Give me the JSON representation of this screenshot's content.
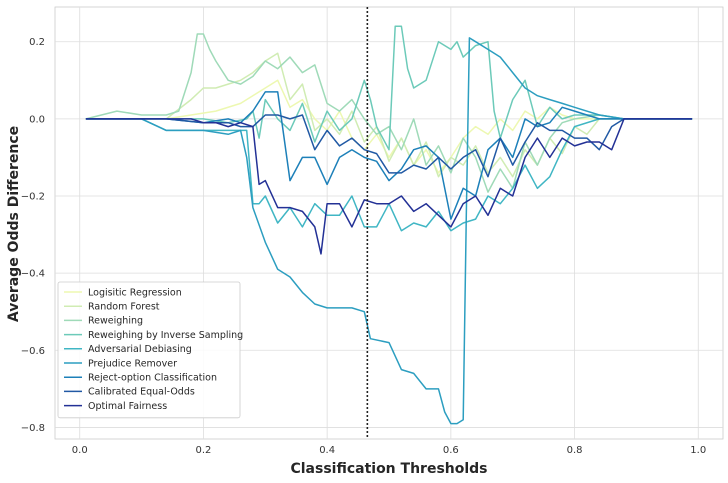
{
  "chart_data": {
    "type": "line",
    "xlabel": "Classification Thresholds",
    "ylabel": "Average Odds Difference",
    "xlim": [
      -0.04,
      1.04
    ],
    "ylim": [
      -0.83,
      0.29
    ],
    "xticks": [
      0.0,
      0.2,
      0.4,
      0.6,
      0.8,
      1.0
    ],
    "xtick_labels": [
      "0.0",
      "0.2",
      "0.4",
      "0.6",
      "0.8",
      "1.0"
    ],
    "yticks": [
      -0.8,
      -0.6,
      -0.4,
      -0.2,
      0.0,
      0.2
    ],
    "ytick_labels": [
      "−0.8",
      "−0.6",
      "−0.4",
      "−0.2",
      "0.0",
      "0.2"
    ],
    "grid": true,
    "legend_position": "lower-left",
    "vline": {
      "x": 0.465,
      "style": "dotted",
      "color": "#222222"
    },
    "series": [
      {
        "name": "Logisitic Regression",
        "color": "#edf8b1",
        "x": [
          0.01,
          0.1,
          0.14,
          0.18,
          0.22,
          0.26,
          0.3,
          0.32,
          0.34,
          0.36,
          0.38,
          0.4,
          0.42,
          0.44,
          0.46,
          0.48,
          0.5,
          0.52,
          0.54,
          0.56,
          0.58,
          0.6,
          0.62,
          0.64,
          0.66,
          0.68,
          0.7,
          0.72,
          0.74,
          0.76,
          0.78,
          0.8,
          0.84,
          0.88,
          0.9,
          0.99
        ],
        "y": [
          0.0,
          0.0,
          0.0,
          0.01,
          0.02,
          0.04,
          0.08,
          0.1,
          0.03,
          0.05,
          0.0,
          -0.03,
          0.02,
          -0.05,
          -0.08,
          -0.04,
          -0.1,
          -0.05,
          -0.12,
          -0.08,
          -0.14,
          -0.1,
          -0.05,
          -0.02,
          -0.04,
          0.0,
          -0.03,
          0.02,
          0.0,
          0.03,
          0.01,
          0.0,
          0.0,
          0.0,
          0.0,
          0.0
        ]
      },
      {
        "name": "Random Forest",
        "color": "#d0ecb3",
        "x": [
          0.01,
          0.1,
          0.14,
          0.18,
          0.2,
          0.22,
          0.24,
          0.26,
          0.28,
          0.3,
          0.32,
          0.34,
          0.36,
          0.38,
          0.4,
          0.42,
          0.44,
          0.46,
          0.48,
          0.5,
          0.52,
          0.54,
          0.56,
          0.58,
          0.6,
          0.62,
          0.64,
          0.66,
          0.68,
          0.7,
          0.72,
          0.74,
          0.76,
          0.78,
          0.8,
          0.82,
          0.84,
          0.88,
          0.9,
          0.99
        ],
        "y": [
          0.0,
          0.0,
          0.0,
          0.05,
          0.08,
          0.08,
          0.09,
          0.1,
          0.12,
          0.15,
          0.17,
          0.05,
          0.09,
          -0.03,
          0.0,
          -0.04,
          0.02,
          -0.06,
          -0.02,
          -0.11,
          -0.05,
          -0.12,
          -0.06,
          -0.15,
          -0.1,
          -0.12,
          -0.07,
          -0.14,
          -0.1,
          -0.15,
          -0.08,
          -0.12,
          -0.05,
          -0.09,
          -0.02,
          -0.04,
          0.0,
          0.0,
          0.0,
          0.0
        ]
      },
      {
        "name": "Reweighing",
        "color": "#9fdab8",
        "x": [
          0.01,
          0.06,
          0.1,
          0.14,
          0.16,
          0.18,
          0.19,
          0.2,
          0.21,
          0.22,
          0.24,
          0.26,
          0.28,
          0.3,
          0.32,
          0.34,
          0.36,
          0.38,
          0.4,
          0.42,
          0.44,
          0.46,
          0.48,
          0.5,
          0.52,
          0.54,
          0.56,
          0.58,
          0.6,
          0.62,
          0.64,
          0.66,
          0.68,
          0.7,
          0.72,
          0.74,
          0.76,
          0.78,
          0.8,
          0.84,
          0.88,
          0.9,
          0.99
        ],
        "y": [
          0.0,
          0.02,
          0.01,
          0.01,
          0.02,
          0.12,
          0.22,
          0.22,
          0.18,
          0.15,
          0.1,
          0.09,
          0.11,
          0.15,
          0.13,
          0.16,
          0.12,
          0.14,
          0.04,
          0.02,
          0.05,
          0.0,
          -0.04,
          -0.02,
          -0.08,
          0.0,
          -0.12,
          -0.07,
          -0.14,
          -0.05,
          -0.1,
          -0.19,
          -0.13,
          -0.18,
          -0.06,
          -0.12,
          -0.05,
          -0.01,
          0.0,
          0.01,
          0.0,
          0.0,
          0.0
        ]
      },
      {
        "name": "Reweighing by Inverse Sampling",
        "color": "#6ccab9",
        "x": [
          0.01,
          0.1,
          0.14,
          0.2,
          0.24,
          0.27,
          0.28,
          0.29,
          0.3,
          0.32,
          0.34,
          0.36,
          0.38,
          0.4,
          0.42,
          0.44,
          0.46,
          0.47,
          0.48,
          0.5,
          0.51,
          0.52,
          0.53,
          0.54,
          0.56,
          0.58,
          0.6,
          0.61,
          0.62,
          0.64,
          0.66,
          0.67,
          0.68,
          0.7,
          0.72,
          0.74,
          0.76,
          0.78,
          0.8,
          0.84,
          0.88,
          0.9,
          0.99
        ],
        "y": [
          0.0,
          0.0,
          0.0,
          0.0,
          -0.01,
          0.0,
          0.02,
          -0.05,
          0.05,
          0.0,
          -0.03,
          0.04,
          -0.06,
          0.02,
          -0.03,
          0.0,
          0.1,
          0.05,
          -0.02,
          -0.08,
          0.24,
          0.24,
          0.13,
          0.08,
          0.1,
          0.2,
          0.18,
          0.2,
          0.16,
          0.19,
          0.2,
          0.02,
          -0.05,
          0.05,
          0.1,
          -0.02,
          0.03,
          0.0,
          0.01,
          0.01,
          0.0,
          0.0,
          0.0
        ]
      },
      {
        "name": "Adversarial Debiasing",
        "color": "#40b6c4",
        "x": [
          0.01,
          0.1,
          0.14,
          0.2,
          0.24,
          0.27,
          0.28,
          0.29,
          0.3,
          0.32,
          0.34,
          0.36,
          0.38,
          0.4,
          0.42,
          0.44,
          0.46,
          0.48,
          0.5,
          0.52,
          0.54,
          0.56,
          0.58,
          0.6,
          0.61,
          0.62,
          0.64,
          0.66,
          0.68,
          0.7,
          0.72,
          0.74,
          0.76,
          0.78,
          0.8,
          0.84,
          0.88,
          0.9,
          0.99
        ],
        "y": [
          0.0,
          0.0,
          -0.03,
          -0.03,
          -0.03,
          -0.03,
          -0.22,
          -0.22,
          -0.2,
          -0.27,
          -0.23,
          -0.28,
          -0.22,
          -0.25,
          -0.25,
          -0.2,
          -0.28,
          -0.28,
          -0.22,
          -0.29,
          -0.27,
          -0.28,
          -0.24,
          -0.29,
          -0.28,
          -0.27,
          -0.26,
          -0.2,
          -0.22,
          -0.18,
          -0.12,
          -0.18,
          -0.15,
          -0.08,
          -0.02,
          0.0,
          0.0,
          0.0,
          0.0
        ]
      },
      {
        "name": "Prejudice Remover",
        "color": "#2c9ec0",
        "x": [
          0.01,
          0.1,
          0.14,
          0.2,
          0.24,
          0.26,
          0.27,
          0.28,
          0.3,
          0.32,
          0.34,
          0.36,
          0.38,
          0.4,
          0.42,
          0.44,
          0.46,
          0.47,
          0.5,
          0.52,
          0.54,
          0.56,
          0.58,
          0.59,
          0.6,
          0.61,
          0.62,
          0.625,
          0.63,
          0.64,
          0.66,
          0.68,
          0.7,
          0.72,
          0.74,
          0.76,
          0.78,
          0.8,
          0.84,
          0.88,
          0.9,
          0.99
        ],
        "y": [
          0.0,
          0.0,
          -0.03,
          -0.03,
          -0.04,
          -0.03,
          -0.1,
          -0.23,
          -0.32,
          -0.39,
          -0.41,
          -0.45,
          -0.48,
          -0.49,
          -0.49,
          -0.49,
          -0.5,
          -0.57,
          -0.58,
          -0.65,
          -0.66,
          -0.7,
          -0.7,
          -0.76,
          -0.79,
          -0.79,
          -0.78,
          -0.25,
          0.21,
          0.2,
          0.18,
          0.16,
          0.12,
          0.08,
          0.06,
          0.05,
          0.04,
          0.03,
          0.01,
          0.0,
          0.0,
          0.0
        ]
      },
      {
        "name": "Reject-option Classification",
        "color": "#1d80b9",
        "x": [
          0.01,
          0.1,
          0.14,
          0.2,
          0.24,
          0.26,
          0.28,
          0.3,
          0.32,
          0.34,
          0.36,
          0.38,
          0.4,
          0.42,
          0.44,
          0.46,
          0.48,
          0.5,
          0.52,
          0.54,
          0.56,
          0.58,
          0.6,
          0.62,
          0.64,
          0.66,
          0.68,
          0.7,
          0.72,
          0.74,
          0.76,
          0.78,
          0.8,
          0.84,
          0.88,
          0.9,
          0.99
        ],
        "y": [
          0.0,
          0.0,
          0.0,
          -0.01,
          0.0,
          -0.01,
          0.02,
          0.07,
          0.07,
          -0.16,
          -0.1,
          -0.1,
          -0.17,
          -0.1,
          -0.08,
          -0.1,
          -0.11,
          -0.16,
          -0.13,
          -0.08,
          -0.07,
          -0.1,
          -0.26,
          -0.18,
          -0.2,
          -0.08,
          -0.05,
          -0.1,
          0.0,
          -0.02,
          -0.01,
          0.03,
          0.02,
          0.0,
          0.0,
          0.0,
          0.0
        ]
      },
      {
        "name": "Calibrated Equal-Odds",
        "color": "#2159a4",
        "x": [
          0.01,
          0.1,
          0.14,
          0.2,
          0.24,
          0.26,
          0.28,
          0.3,
          0.32,
          0.34,
          0.36,
          0.38,
          0.4,
          0.42,
          0.44,
          0.46,
          0.48,
          0.5,
          0.52,
          0.54,
          0.56,
          0.58,
          0.6,
          0.62,
          0.64,
          0.66,
          0.68,
          0.7,
          0.72,
          0.74,
          0.76,
          0.78,
          0.8,
          0.82,
          0.84,
          0.86,
          0.88,
          0.9,
          0.99
        ],
        "y": [
          0.0,
          0.0,
          0.0,
          -0.01,
          -0.01,
          -0.02,
          -0.02,
          0.01,
          0.01,
          0.0,
          0.01,
          -0.08,
          -0.03,
          -0.07,
          -0.05,
          -0.08,
          -0.09,
          -0.14,
          -0.14,
          -0.12,
          -0.13,
          -0.1,
          -0.13,
          -0.1,
          -0.08,
          -0.15,
          -0.05,
          -0.12,
          -0.06,
          -0.01,
          -0.03,
          -0.03,
          -0.05,
          -0.05,
          -0.08,
          -0.02,
          0.0,
          0.0,
          0.0
        ]
      },
      {
        "name": "Optimal Fairness",
        "color": "#233196",
        "x": [
          0.01,
          0.1,
          0.14,
          0.18,
          0.2,
          0.22,
          0.24,
          0.26,
          0.28,
          0.29,
          0.3,
          0.32,
          0.34,
          0.36,
          0.38,
          0.39,
          0.4,
          0.42,
          0.44,
          0.46,
          0.48,
          0.5,
          0.52,
          0.54,
          0.56,
          0.58,
          0.6,
          0.62,
          0.64,
          0.66,
          0.68,
          0.7,
          0.72,
          0.74,
          0.76,
          0.78,
          0.8,
          0.82,
          0.84,
          0.86,
          0.88,
          0.9,
          0.99
        ],
        "y": [
          0.0,
          0.0,
          0.0,
          0.0,
          -0.01,
          -0.01,
          -0.02,
          -0.01,
          -0.02,
          -0.17,
          -0.16,
          -0.23,
          -0.23,
          -0.24,
          -0.28,
          -0.35,
          -0.22,
          -0.22,
          -0.28,
          -0.21,
          -0.22,
          -0.22,
          -0.2,
          -0.24,
          -0.22,
          -0.25,
          -0.28,
          -0.22,
          -0.2,
          -0.25,
          -0.18,
          -0.2,
          -0.1,
          -0.05,
          -0.1,
          -0.05,
          -0.07,
          -0.06,
          -0.06,
          -0.08,
          0.0,
          0.0,
          0.0
        ]
      }
    ]
  }
}
